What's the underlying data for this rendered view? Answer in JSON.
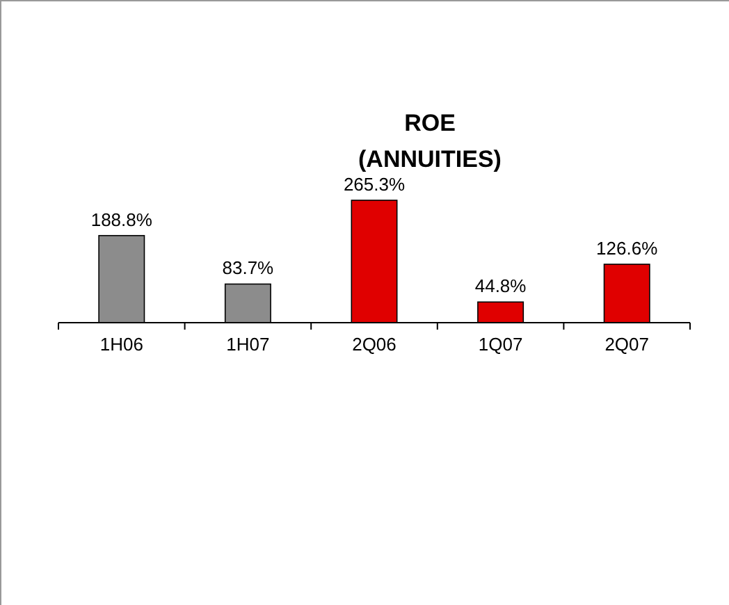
{
  "chart_data": {
    "type": "bar",
    "title": "ROE",
    "subtitle": "(ANNUITIES)",
    "categories": [
      "1H06",
      "1H07",
      "2Q06",
      "1Q07",
      "2Q07"
    ],
    "values": [
      188.8,
      83.7,
      265.3,
      44.8,
      126.6
    ],
    "colors": [
      "#8c8c8c",
      "#8c8c8c",
      "#e00000",
      "#e00000",
      "#e00000"
    ],
    "value_labels": [
      "188.8%",
      "83.7%",
      "265.3%",
      "44.8%",
      "126.6%"
    ]
  }
}
